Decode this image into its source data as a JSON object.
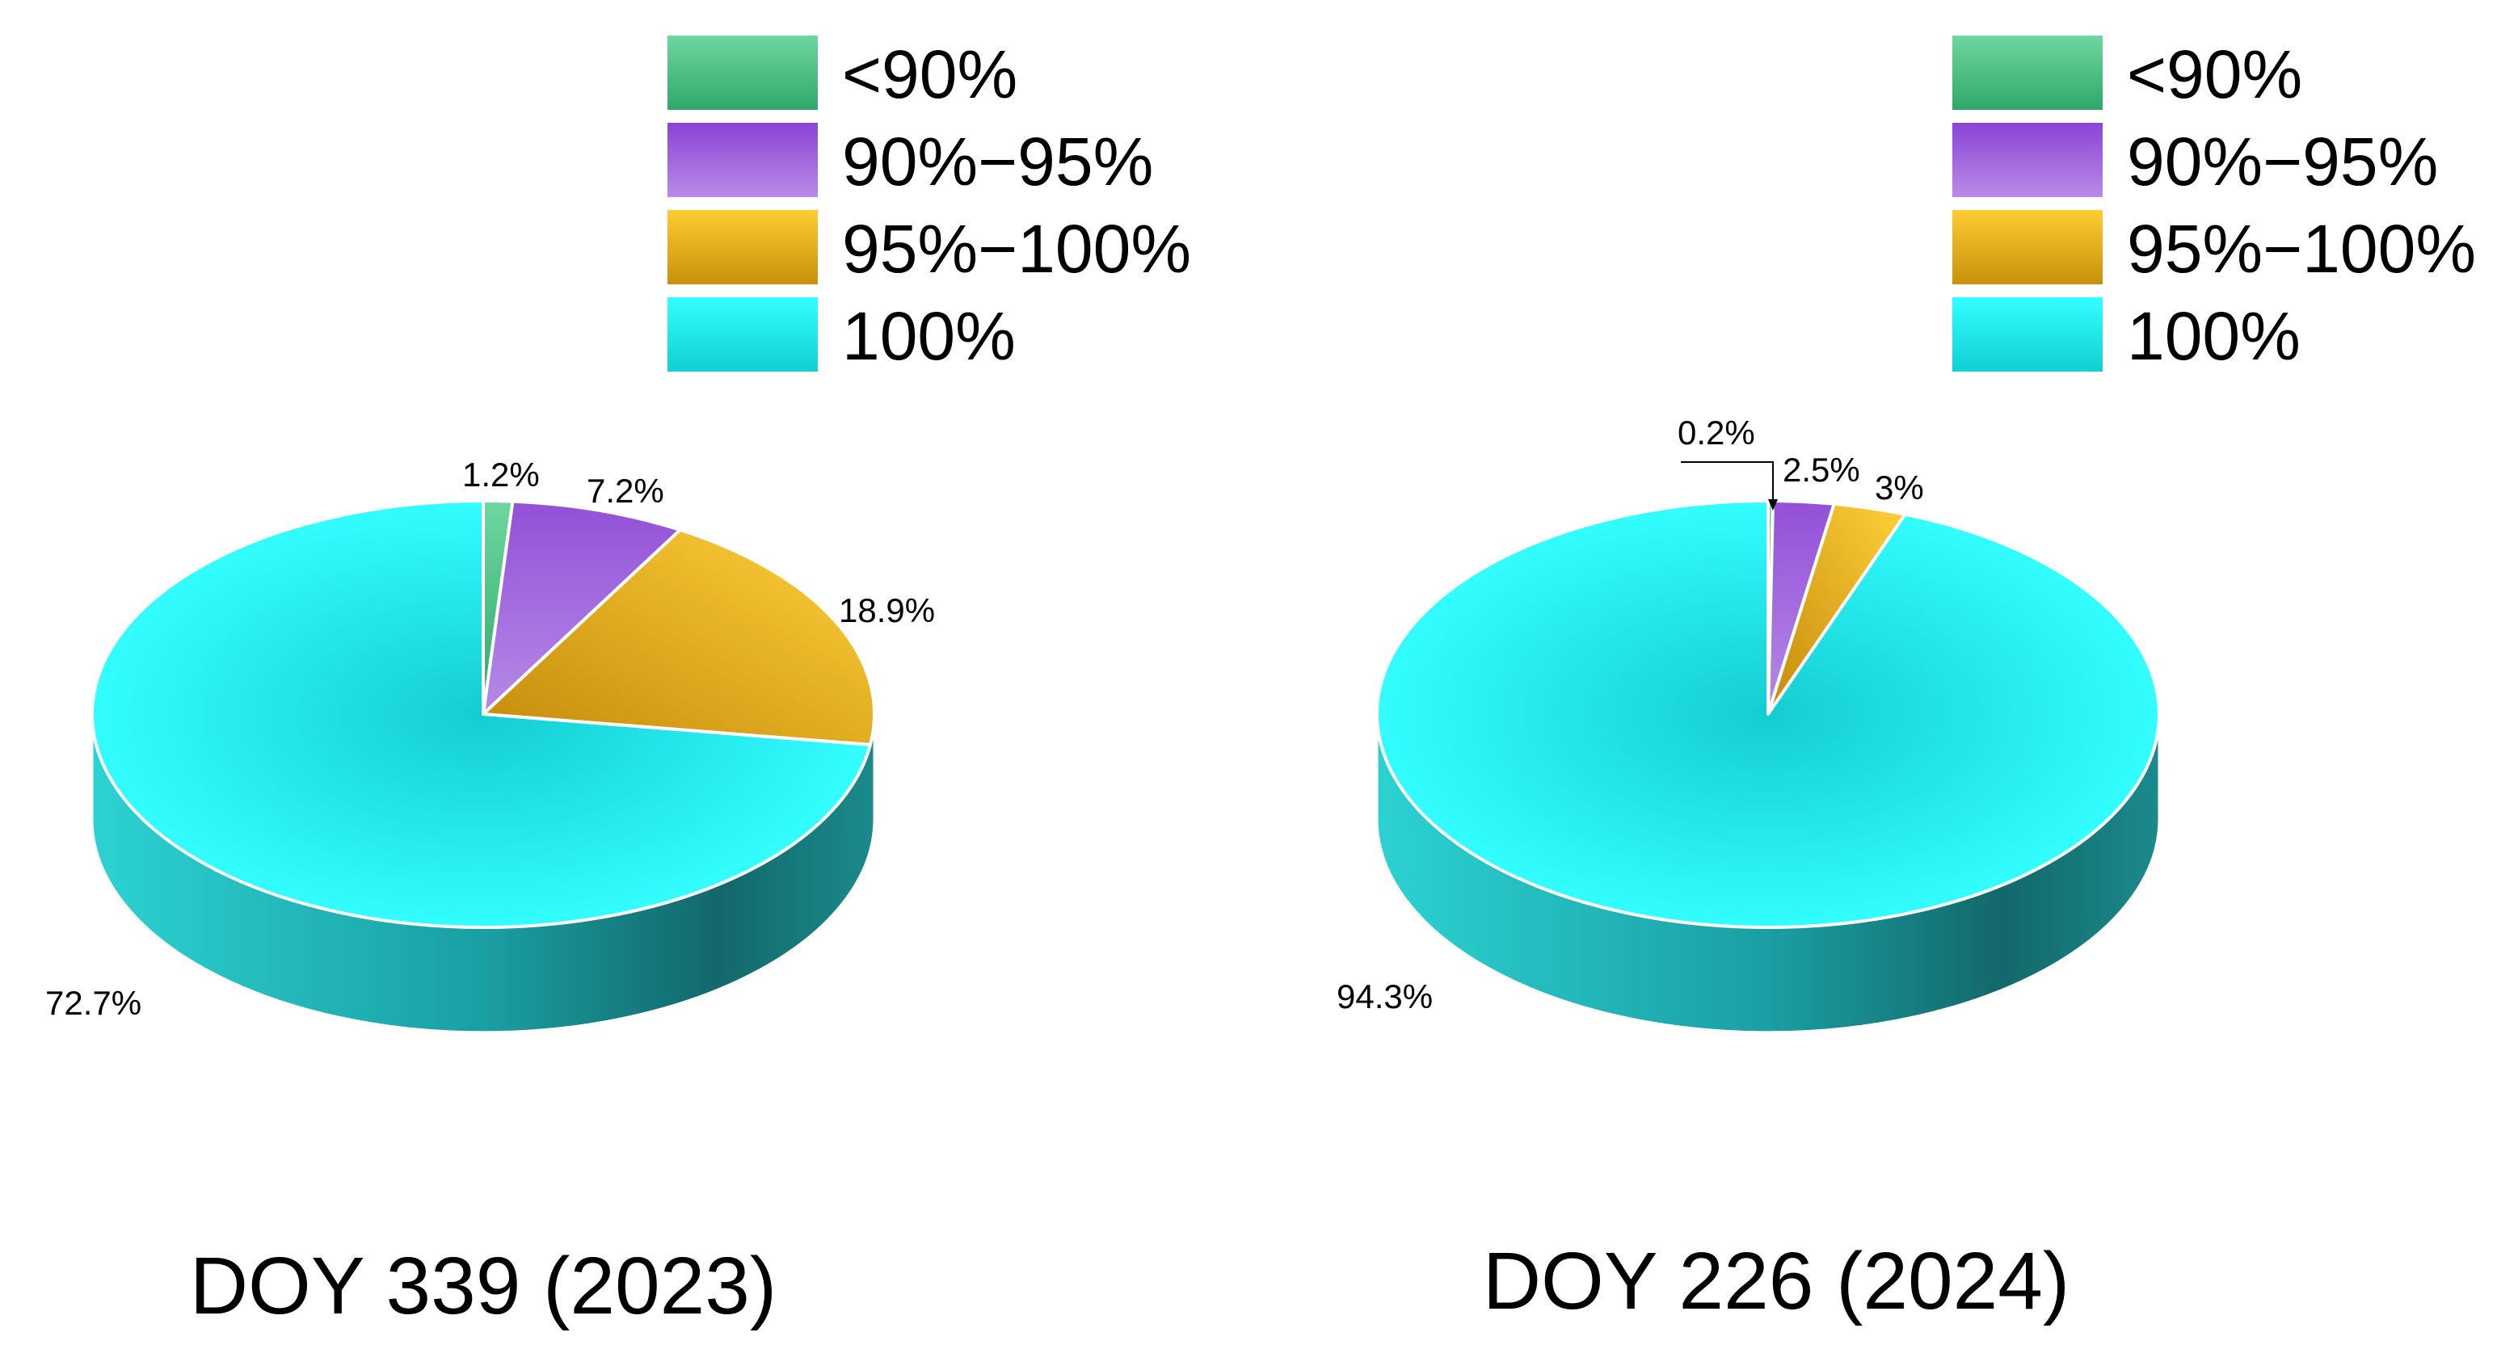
{
  "legend": {
    "items": [
      {
        "label": "<90%",
        "color": "#4dc489"
      },
      {
        "label": "90%−95%",
        "color": "#9a5bd9"
      },
      {
        "label": "95%−100%",
        "color": "#e0a81e"
      },
      {
        "label": "100%",
        "color": "#1fe3e6"
      }
    ]
  },
  "chart_data": [
    {
      "type": "pie",
      "title": "DOY 339 (2023)",
      "categories": [
        "<90%",
        "90%−95%",
        "95%−100%",
        "100%"
      ],
      "values": [
        1.2,
        7.2,
        18.9,
        72.7
      ],
      "value_labels": [
        "1.2%",
        "7.2%",
        "18.9%",
        "72.7%"
      ],
      "style": "3d",
      "legend_position": "top-right"
    },
    {
      "type": "pie",
      "title": "DOY 226 (2024)",
      "categories": [
        "<90%",
        "90%−95%",
        "95%−100%",
        "100%"
      ],
      "values": [
        0.2,
        2.5,
        3,
        94.3
      ],
      "value_labels": [
        "0.2%",
        "2.5%",
        "3%",
        "94.3%"
      ],
      "style": "3d",
      "legend_position": "top-right"
    }
  ]
}
